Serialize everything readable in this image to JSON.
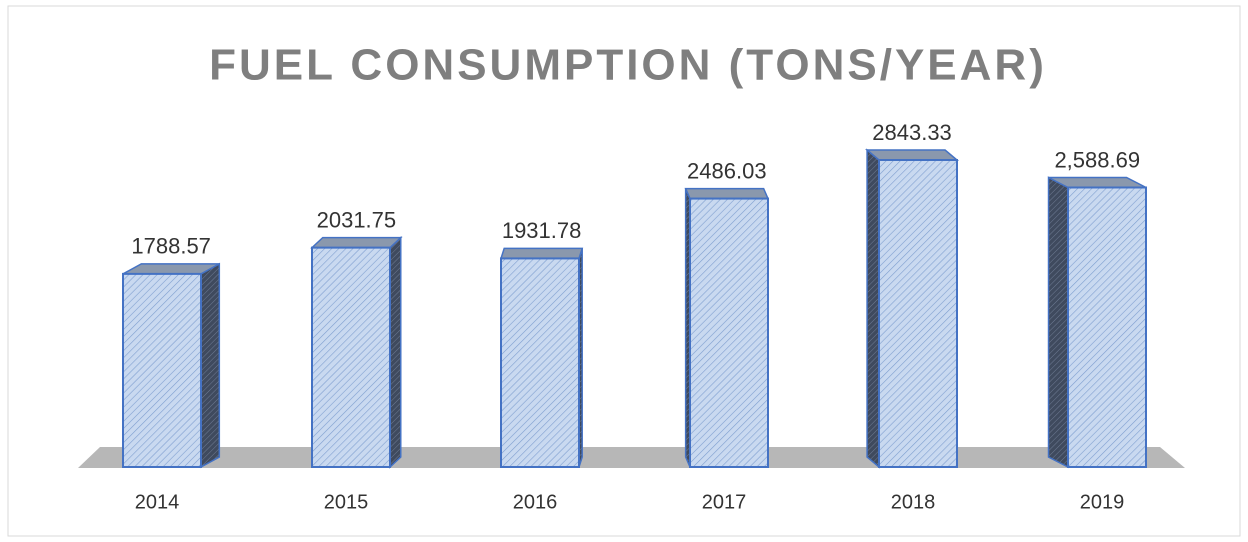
{
  "chart_data": {
    "type": "bar",
    "title": "FUEL CONSUMPTION (TONS/YEAR)",
    "categories": [
      "2014",
      "2015",
      "2016",
      "2017",
      "2018",
      "2019"
    ],
    "values": [
      1788.57,
      2031.75,
      1931.78,
      2486.03,
      2843.33,
      2588.69
    ],
    "value_labels": [
      "1788.57",
      "2031.75",
      "1931.78",
      "2486.03",
      "2843.33",
      "2,588.69"
    ],
    "color": "#c9d9f0"
  }
}
